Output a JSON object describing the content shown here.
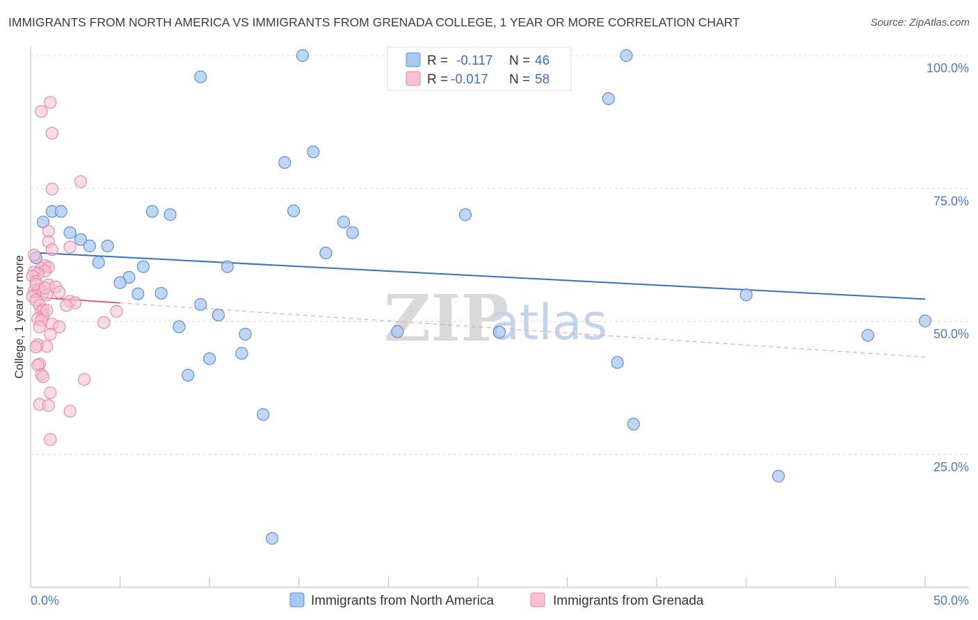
{
  "header": {
    "title": "IMMIGRANTS FROM NORTH AMERICA VS IMMIGRANTS FROM GRENADA COLLEGE, 1 YEAR OR MORE CORRELATION CHART",
    "source": "Source: ZipAtlas.com"
  },
  "watermark": {
    "zip": "ZIP",
    "atlas": "atlas"
  },
  "stats": {
    "r_label": "R =",
    "n_label": "N =",
    "rows": [
      {
        "r": "-0.117",
        "n": "46",
        "color": "#a9c8f0",
        "stroke": "#5b8fd6"
      },
      {
        "r": "-0.017",
        "n": "58",
        "color": "#f8c0d0",
        "stroke": "#e68aa6"
      }
    ]
  },
  "chart_data": {
    "type": "scatter",
    "title": "IMMIGRANTS FROM NORTH AMERICA VS IMMIGRANTS FROM GRENADA COLLEGE, 1 YEAR OR MORE CORRELATION CHART",
    "xlabel": "",
    "ylabel": "College, 1 year or more",
    "xlim": [
      0,
      50
    ],
    "ylim": [
      0,
      100
    ],
    "x_ticks": [
      "0.0%",
      "50.0%"
    ],
    "y_ticks": [
      {
        "value": 25,
        "label": "25.0%"
      },
      {
        "value": 50,
        "label": "50.0%"
      },
      {
        "value": 75,
        "label": "75.0%"
      },
      {
        "value": 100,
        "label": "100.0%"
      }
    ],
    "grid": true,
    "legend_position": "bottom-center",
    "series": [
      {
        "name": "Immigrants from North America",
        "color": "#a9c8f0",
        "stroke": "#5b8fd6",
        "trend": {
          "x": [
            0.5,
            50
          ],
          "y": [
            62.9,
            54.2
          ],
          "color": "#2f6fcf"
        },
        "points": [
          [
            15.2,
            100.0
          ],
          [
            33.3,
            100.0
          ],
          [
            9.5,
            96.0
          ],
          [
            32.3,
            91.9
          ],
          [
            14.2,
            79.9
          ],
          [
            15.8,
            81.9
          ],
          [
            1.2,
            70.7
          ],
          [
            1.7,
            70.7
          ],
          [
            6.8,
            70.7
          ],
          [
            7.8,
            70.1
          ],
          [
            14.7,
            70.8
          ],
          [
            24.3,
            70.1
          ],
          [
            0.7,
            68.7
          ],
          [
            17.5,
            68.7
          ],
          [
            18.0,
            66.7
          ],
          [
            2.2,
            66.7
          ],
          [
            2.8,
            65.4
          ],
          [
            3.3,
            64.2
          ],
          [
            4.3,
            64.2
          ],
          [
            16.5,
            62.9
          ],
          [
            3.8,
            61.1
          ],
          [
            6.3,
            60.3
          ],
          [
            11.0,
            60.3
          ],
          [
            5.5,
            58.3
          ],
          [
            5.0,
            57.3
          ],
          [
            6.0,
            55.2
          ],
          [
            7.3,
            55.3
          ],
          [
            40.0,
            55.0
          ],
          [
            9.5,
            53.2
          ],
          [
            10.5,
            51.2
          ],
          [
            50.0,
            50.1
          ],
          [
            8.3,
            49.0
          ],
          [
            20.5,
            48.1
          ],
          [
            26.2,
            48.0
          ],
          [
            12.0,
            47.6
          ],
          [
            46.8,
            47.4
          ],
          [
            10.0,
            43.0
          ],
          [
            11.8,
            44.0
          ],
          [
            32.8,
            42.3
          ],
          [
            8.8,
            39.9
          ],
          [
            13.0,
            32.5
          ],
          [
            33.7,
            30.7
          ],
          [
            41.8,
            20.9
          ],
          [
            13.5,
            9.2
          ],
          [
            0.3,
            62.0
          ],
          [
            0.4,
            56.0
          ]
        ]
      },
      {
        "name": "Immigrants from Grenada",
        "color": "#f8c0d0",
        "stroke": "#e68aa6",
        "trend": {
          "x": [
            0,
            5
          ],
          "y": [
            54.6,
            53.5
          ],
          "color": "#e05a86"
        },
        "trend_ext": {
          "x": [
            5,
            50
          ],
          "y": [
            53.5,
            43.3
          ],
          "color": "#f0a0b8"
        },
        "points": [
          [
            1.1,
            91.2
          ],
          [
            0.6,
            89.5
          ],
          [
            1.2,
            85.4
          ],
          [
            2.8,
            76.3
          ],
          [
            1.2,
            74.9
          ],
          [
            1.0,
            67.0
          ],
          [
            1.0,
            65.0
          ],
          [
            2.2,
            64.0
          ],
          [
            1.2,
            63.5
          ],
          [
            0.2,
            62.5
          ],
          [
            0.8,
            60.5
          ],
          [
            0.6,
            60.0
          ],
          [
            1.0,
            60.2
          ],
          [
            0.8,
            59.5
          ],
          [
            0.2,
            59.3
          ],
          [
            0.4,
            59.0
          ],
          [
            0.1,
            58.5
          ],
          [
            0.3,
            57.5
          ],
          [
            1.0,
            56.9
          ],
          [
            1.4,
            56.5
          ],
          [
            0.5,
            56.0
          ],
          [
            0.2,
            55.8
          ],
          [
            0.7,
            55.5
          ],
          [
            1.6,
            55.5
          ],
          [
            0.9,
            55.0
          ],
          [
            0.1,
            54.7
          ],
          [
            0.3,
            54.0
          ],
          [
            2.2,
            53.8
          ],
          [
            2.5,
            53.5
          ],
          [
            0.5,
            53.0
          ],
          [
            2.0,
            53.0
          ],
          [
            0.7,
            52.2
          ],
          [
            0.6,
            51.9
          ],
          [
            4.8,
            51.9
          ],
          [
            0.7,
            51.0
          ],
          [
            0.4,
            50.5
          ],
          [
            0.6,
            50.2
          ],
          [
            1.2,
            49.5
          ],
          [
            4.1,
            49.8
          ],
          [
            1.6,
            49.0
          ],
          [
            0.5,
            49.0
          ],
          [
            1.1,
            47.6
          ],
          [
            0.4,
            45.6
          ],
          [
            0.9,
            45.3
          ],
          [
            0.3,
            45.2
          ],
          [
            0.5,
            42.0
          ],
          [
            0.4,
            41.8
          ],
          [
            0.6,
            40.0
          ],
          [
            0.7,
            39.6
          ],
          [
            3.0,
            39.1
          ],
          [
            1.1,
            36.6
          ],
          [
            0.5,
            34.4
          ],
          [
            1.0,
            34.2
          ],
          [
            2.2,
            33.1
          ],
          [
            1.1,
            27.8
          ],
          [
            0.9,
            52.1
          ],
          [
            0.3,
            57.0
          ],
          [
            0.8,
            56.3
          ]
        ]
      }
    ]
  }
}
